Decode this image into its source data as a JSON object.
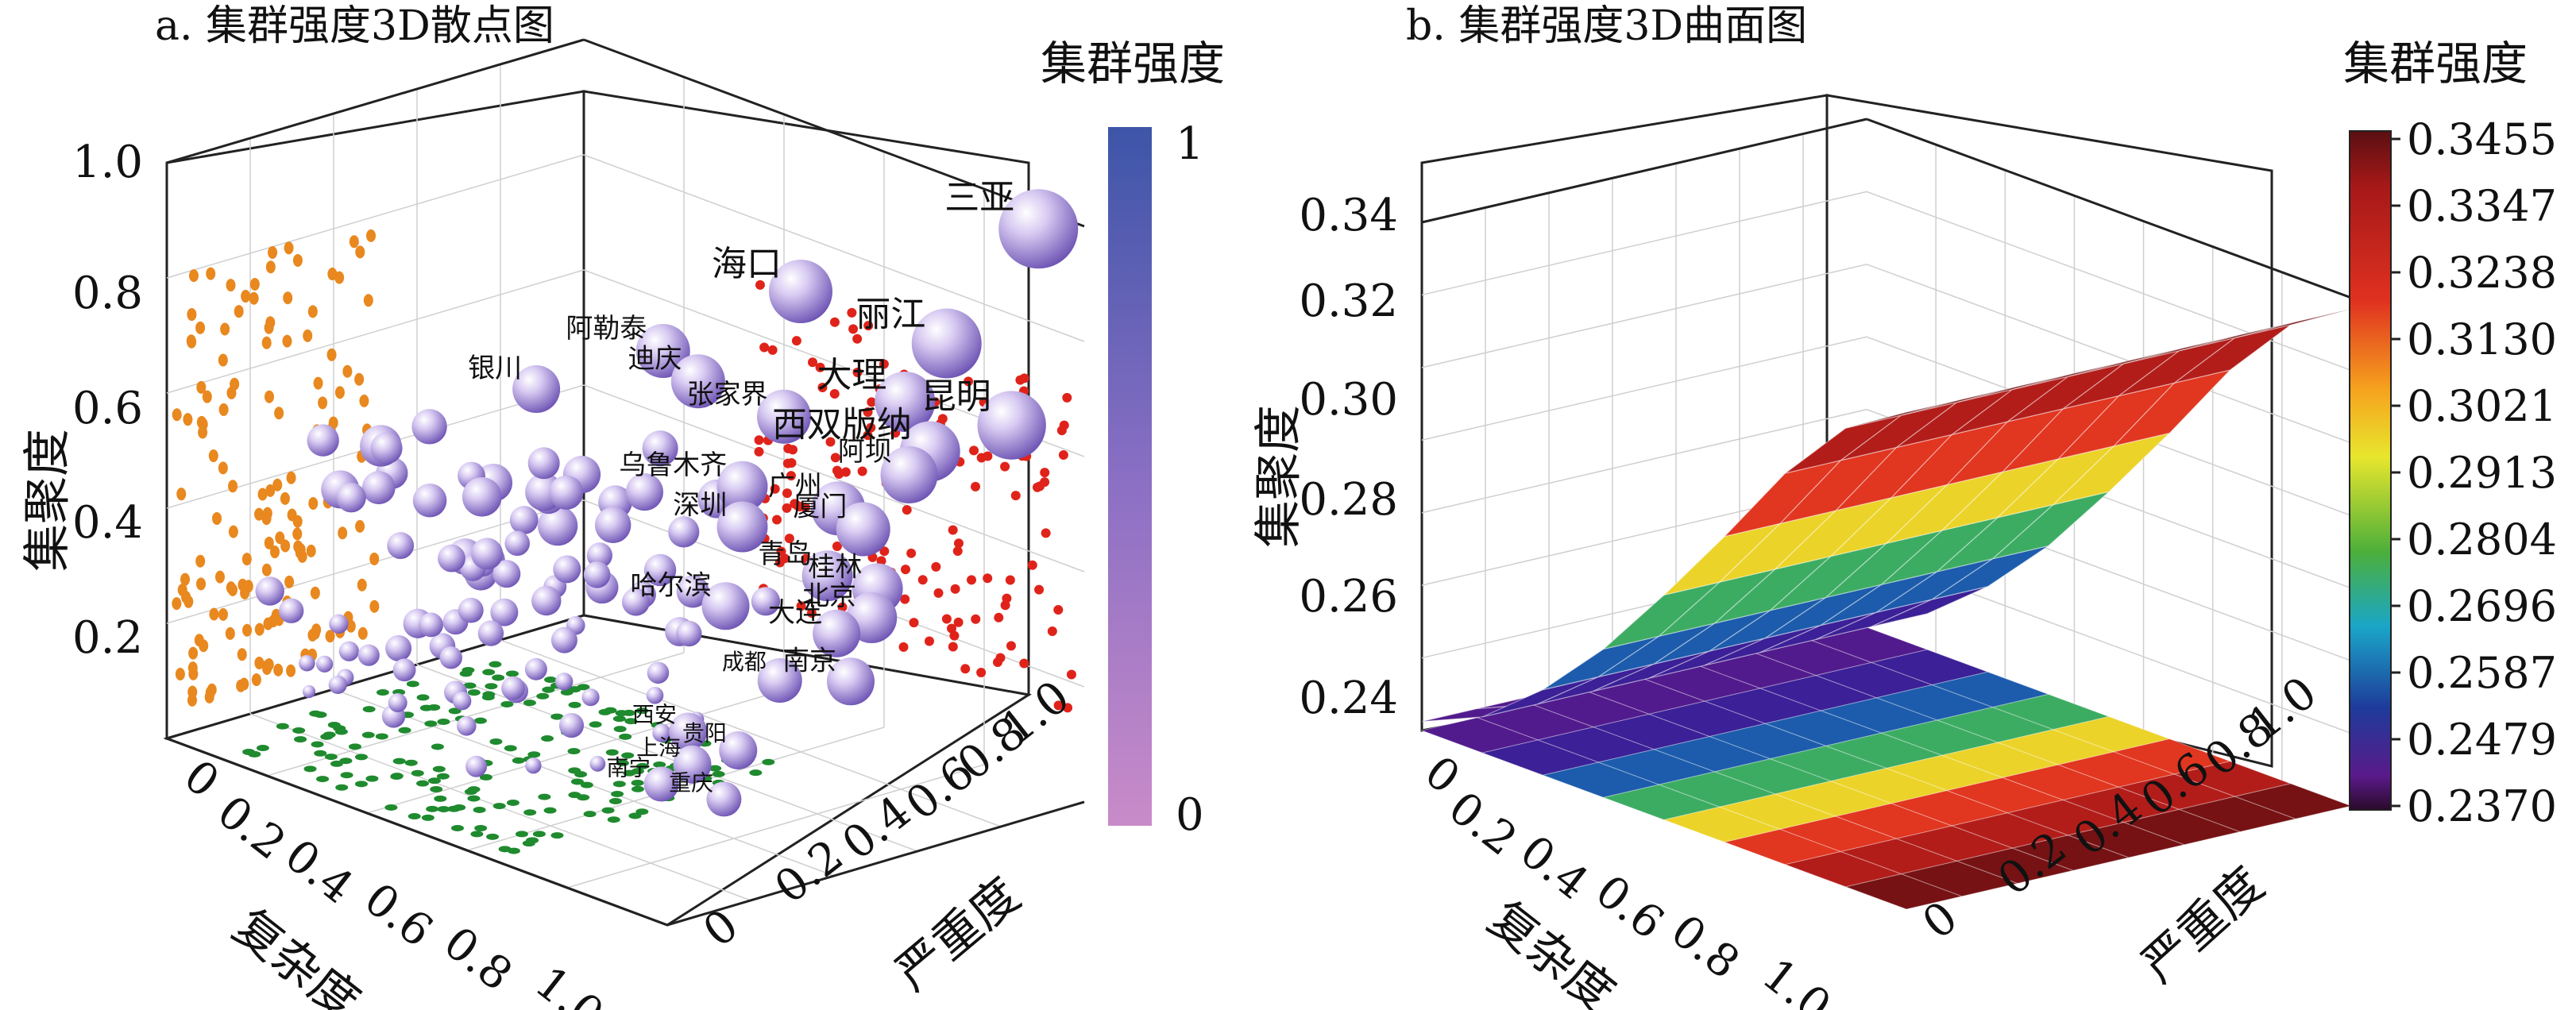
{
  "colors": {
    "orange": "#e8881f",
    "red": "#e0231a",
    "green": "#1f8a2e",
    "sphere": "#a78fd6",
    "cbar_top": "#3d55a8",
    "cbar_bottom": "#c98bc9"
  },
  "chart_data": [
    {
      "type": "scatter",
      "title": "a. 集群强度3D散点图",
      "xlabel": "复杂度",
      "ylabel": "严重度",
      "zlabel": "集聚度",
      "xlim": [
        0,
        1
      ],
      "ylim": [
        0,
        1
      ],
      "zlim": [
        0,
        1
      ],
      "x_ticks": [
        "0",
        "0.2",
        "0.4",
        "0.6",
        "0.8",
        "1.0"
      ],
      "y_ticks": [
        "0",
        "0.2",
        "0.4",
        "0.6",
        "0.8",
        "1.0"
      ],
      "z_ticks": [
        "0.2",
        "0.4",
        "0.6",
        "0.8",
        "1.0"
      ],
      "colorbar": {
        "title": "集群强度",
        "max_label": "1",
        "min_label": "0"
      },
      "grid": true,
      "labeled_points": [
        {
          "name": "三亚",
          "x": 0.95,
          "y": 0.95,
          "z": 0.99,
          "strength": 0.95
        },
        {
          "name": "丽江",
          "x": 0.85,
          "y": 0.85,
          "z": 0.78,
          "strength": 0.8
        },
        {
          "name": "昆明",
          "x": 0.98,
          "y": 0.85,
          "z": 0.68,
          "strength": 0.78
        },
        {
          "name": "海口",
          "x": 0.6,
          "y": 0.8,
          "z": 0.8,
          "strength": 0.7
        },
        {
          "name": "大理",
          "x": 0.85,
          "y": 0.75,
          "z": 0.7,
          "strength": 0.65
        },
        {
          "name": "西双版纳",
          "x": 0.9,
          "y": 0.75,
          "z": 0.63,
          "strength": 0.65
        },
        {
          "name": "阿勒泰",
          "x": 0.45,
          "y": 0.65,
          "z": 0.68,
          "strength": 0.55
        },
        {
          "name": "迪庆",
          "x": 0.52,
          "y": 0.65,
          "z": 0.65,
          "strength": 0.55
        },
        {
          "name": "张家界",
          "x": 0.65,
          "y": 0.7,
          "z": 0.62,
          "strength": 0.55
        },
        {
          "name": "阿坝",
          "x": 0.9,
          "y": 0.7,
          "z": 0.6,
          "strength": 0.6
        },
        {
          "name": "银川",
          "x": 0.28,
          "y": 0.55,
          "z": 0.58,
          "strength": 0.45
        },
        {
          "name": "乌鲁木齐",
          "x": 0.65,
          "y": 0.6,
          "z": 0.52,
          "strength": 0.5
        },
        {
          "name": "广州",
          "x": 0.8,
          "y": 0.65,
          "z": 0.52,
          "strength": 0.55
        },
        {
          "name": "厦门",
          "x": 0.85,
          "y": 0.65,
          "z": 0.5,
          "strength": 0.55
        },
        {
          "name": "深圳",
          "x": 0.65,
          "y": 0.6,
          "z": 0.45,
          "strength": 0.5
        },
        {
          "name": "青岛",
          "x": 0.82,
          "y": 0.6,
          "z": 0.42,
          "strength": 0.5
        },
        {
          "name": "桂林",
          "x": 0.92,
          "y": 0.6,
          "z": 0.43,
          "strength": 0.5
        },
        {
          "name": "北京",
          "x": 0.95,
          "y": 0.55,
          "z": 0.4,
          "strength": 0.5
        },
        {
          "name": "大连",
          "x": 0.88,
          "y": 0.55,
          "z": 0.35,
          "strength": 0.45
        },
        {
          "name": "哈尔滨",
          "x": 0.7,
          "y": 0.5,
          "z": 0.35,
          "strength": 0.45
        },
        {
          "name": "南京",
          "x": 0.95,
          "y": 0.5,
          "z": 0.3,
          "strength": 0.45
        },
        {
          "name": "成都",
          "x": 0.85,
          "y": 0.45,
          "z": 0.28,
          "strength": 0.4
        },
        {
          "name": "西安",
          "x": 0.75,
          "y": 0.35,
          "z": 0.18,
          "strength": 0.3
        },
        {
          "name": "贵阳",
          "x": 0.85,
          "y": 0.35,
          "z": 0.18,
          "strength": 0.3
        },
        {
          "name": "上海",
          "x": 0.8,
          "y": 0.3,
          "z": 0.15,
          "strength": 0.3
        },
        {
          "name": "南宁",
          "x": 0.78,
          "y": 0.25,
          "z": 0.12,
          "strength": 0.25
        },
        {
          "name": "重庆",
          "x": 0.88,
          "y": 0.28,
          "z": 0.12,
          "strength": 0.25
        }
      ],
      "projection_series": [
        {
          "plane": "复杂度 × 集聚度",
          "color": "#e8881f"
        },
        {
          "plane": "严重度 × 集聚度",
          "color": "#e0231a"
        },
        {
          "plane": "复杂度 × 严重度",
          "color": "#1f8a2e"
        }
      ]
    },
    {
      "type": "surface",
      "title": "b. 集群强度3D曲面图",
      "xlabel": "复杂度",
      "ylabel": "严重度",
      "zlabel": "集聚度",
      "xlim": [
        0,
        1
      ],
      "ylim": [
        0,
        1
      ],
      "zlim": [
        0.235,
        0.348
      ],
      "x_ticks": [
        "0",
        "0.2",
        "0.4",
        "0.6",
        "0.8",
        "1.0"
      ],
      "y_ticks": [
        "0",
        "0.2",
        "0.4",
        "0.6",
        "0.8",
        "1.0"
      ],
      "z_ticks": [
        "0.24",
        "0.26",
        "0.28",
        "0.30",
        "0.32",
        "0.34"
      ],
      "colorbar": {
        "title": "集群强度",
        "ticks": [
          "0.3455",
          "0.3347",
          "0.3238",
          "0.3130",
          "0.3021",
          "0.2913",
          "0.2804",
          "0.2696",
          "0.2587",
          "0.2479",
          "0.2370"
        ]
      },
      "surface_x": [
        0,
        0.125,
        0.25,
        0.375,
        0.5,
        0.625,
        0.75,
        0.875,
        1.0
      ],
      "surface_z_by_x": [
        0.237,
        0.243,
        0.254,
        0.268,
        0.285,
        0.303,
        0.322,
        0.337,
        0.3455
      ],
      "surface_varies_with_y": false
    }
  ]
}
